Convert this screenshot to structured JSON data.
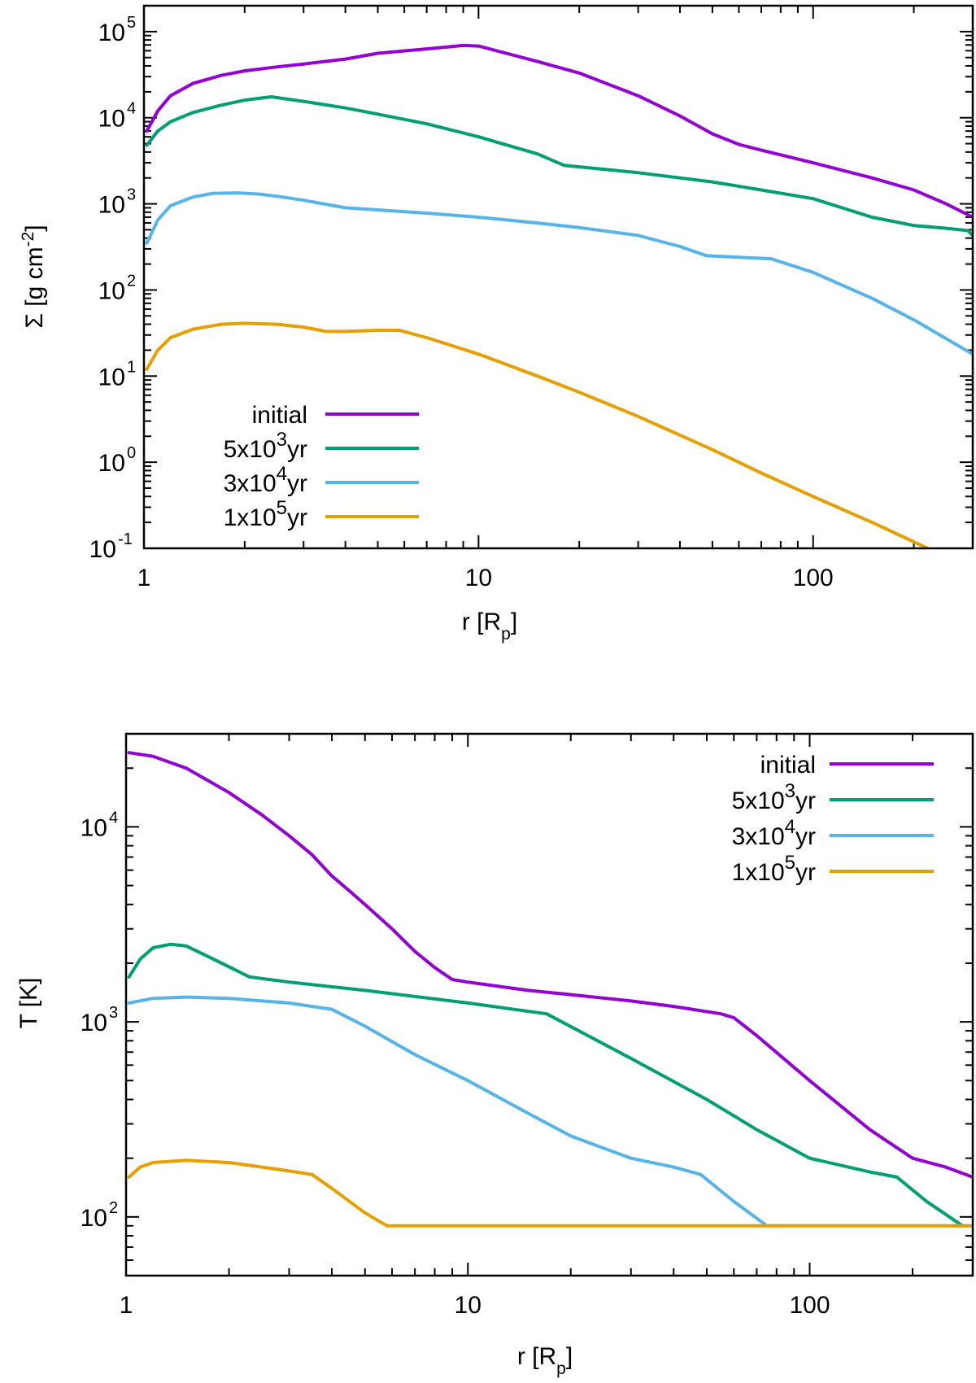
{
  "colors": {
    "initial": "#9400d3",
    "5e3": "#009e73",
    "3e4": "#56b4e9",
    "1e5": "#e69f00"
  },
  "chart_data": [
    {
      "type": "line",
      "x_scale": "log",
      "y_scale": "log",
      "xlabel": "r [R_p]",
      "ylabel": "Σ [g cm^-2]",
      "xlim": [
        1,
        300
      ],
      "ylim": [
        0.1,
        200000
      ],
      "grid": false,
      "legend_position": "bottom-left",
      "x_ticks": [
        {
          "value": 1,
          "label": "1"
        },
        {
          "value": 10,
          "label": "10"
        },
        {
          "value": 100,
          "label": "100"
        }
      ],
      "y_ticks": [
        {
          "value": 0.1,
          "base": "10",
          "exp": "-1"
        },
        {
          "value": 1,
          "base": "10",
          "exp": "0"
        },
        {
          "value": 10,
          "base": "10",
          "exp": "1"
        },
        {
          "value": 100,
          "base": "10",
          "exp": "2"
        },
        {
          "value": 1000,
          "base": "10",
          "exp": "3"
        },
        {
          "value": 10000,
          "base": "10",
          "exp": "4"
        },
        {
          "value": 100000,
          "base": "10",
          "exp": "5"
        }
      ],
      "series": [
        {
          "name": "initial",
          "name_parts": [
            "initial",
            "",
            ""
          ],
          "color_key": "initial",
          "x": [
            1.02,
            1.1,
            1.2,
            1.4,
            1.7,
            2.0,
            2.5,
            3.0,
            4.0,
            5.0,
            7.0,
            9.0,
            10.0,
            15.0,
            20.0,
            30.0,
            40.0,
            50.0,
            60.0,
            70.0,
            100.0,
            150.0,
            200.0,
            250.0,
            300.0
          ],
          "y": [
            7000,
            12000,
            18000,
            25000,
            31000,
            35000,
            39000,
            42000,
            48000,
            56000,
            63000,
            69000,
            68000,
            45000,
            33000,
            18000,
            10500,
            6500,
            4900,
            4200,
            3000,
            2000,
            1450,
            1000,
            700
          ]
        },
        {
          "name": "5x10^3yr",
          "name_parts": [
            "5x10",
            "3",
            "yr"
          ],
          "color_key": "5e3",
          "x": [
            1.02,
            1.1,
            1.2,
            1.4,
            1.7,
            2.0,
            2.4,
            3.0,
            4.0,
            5.0,
            7.0,
            10.0,
            15.0,
            18.0,
            30.0,
            50.0,
            70.0,
            100.0,
            150.0,
            200.0,
            250.0,
            290.0,
            300.0
          ],
          "y": [
            4800,
            7000,
            9000,
            11500,
            14000,
            16000,
            17500,
            15500,
            13000,
            11000,
            8500,
            6000,
            3800,
            2800,
            2300,
            1800,
            1450,
            1150,
            700,
            560,
            520,
            490,
            430
          ]
        },
        {
          "name": "3x10^4yr",
          "name_parts": [
            "3x10",
            "4",
            "yr"
          ],
          "color_key": "3e4",
          "x": [
            1.02,
            1.1,
            1.2,
            1.4,
            1.6,
            1.9,
            2.2,
            2.6,
            3.0,
            4.0,
            5.0,
            7.0,
            10.0,
            15.0,
            20.0,
            30.0,
            40.0,
            48.0,
            60.0,
            75.0,
            100.0,
            150.0,
            200.0,
            300.0
          ],
          "y": [
            350,
            650,
            950,
            1200,
            1320,
            1340,
            1300,
            1200,
            1100,
            900,
            850,
            780,
            700,
            600,
            530,
            430,
            320,
            250,
            240,
            230,
            160,
            80,
            45,
            18
          ]
        },
        {
          "name": "1x10^5yr",
          "name_parts": [
            "1x10",
            "5",
            "yr"
          ],
          "color_key": "1e5",
          "x": [
            1.02,
            1.1,
            1.2,
            1.4,
            1.7,
            2.0,
            2.5,
            3.0,
            3.5,
            4.0,
            5.0,
            5.8,
            7.0,
            10.0,
            15.0,
            20.0,
            30.0,
            50.0,
            70.0,
            100.0,
            150.0,
            220.0
          ],
          "y": [
            12,
            20,
            28,
            35,
            40,
            41,
            40,
            37,
            33,
            33,
            34,
            34,
            28,
            18,
            10,
            6.5,
            3.4,
            1.4,
            0.75,
            0.4,
            0.2,
            0.1
          ]
        }
      ]
    },
    {
      "type": "line",
      "x_scale": "log",
      "y_scale": "log",
      "xlabel": "r [R_p]",
      "ylabel": "T [K]",
      "xlim": [
        1,
        300
      ],
      "ylim": [
        50,
        30000
      ],
      "grid": false,
      "legend_position": "top-right",
      "x_ticks": [
        {
          "value": 1,
          "label": "1"
        },
        {
          "value": 10,
          "label": "10"
        },
        {
          "value": 100,
          "label": "100"
        }
      ],
      "y_ticks": [
        {
          "value": 100,
          "base": "10",
          "exp": "2"
        },
        {
          "value": 1000,
          "base": "10",
          "exp": "3"
        },
        {
          "value": 10000,
          "base": "10",
          "exp": "4"
        }
      ],
      "series": [
        {
          "name": "initial",
          "name_parts": [
            "initial",
            "",
            ""
          ],
          "color_key": "initial",
          "x": [
            1.02,
            1.2,
            1.5,
            2.0,
            2.5,
            3.0,
            3.5,
            4.0,
            4.5,
            5.0,
            6.0,
            7.0,
            8.0,
            9.0,
            10.0,
            15.0,
            20.0,
            30.0,
            40.0,
            55.0,
            60.0,
            70.0,
            100.0,
            150.0,
            200.0,
            250.0,
            300.0
          ],
          "y": [
            24000,
            23000,
            20000,
            15000,
            11500,
            9000,
            7200,
            5600,
            4700,
            4000,
            3000,
            2300,
            1900,
            1650,
            1600,
            1450,
            1380,
            1280,
            1200,
            1100,
            1050,
            850,
            500,
            280,
            200,
            180,
            160
          ]
        },
        {
          "name": "5x10^3yr",
          "name_parts": [
            "5x10",
            "3",
            "yr"
          ],
          "color_key": "5e3",
          "x": [
            1.02,
            1.1,
            1.2,
            1.35,
            1.5,
            1.8,
            2.3,
            3.0,
            5.0,
            10.0,
            17.0,
            30.0,
            50.0,
            70.0,
            100.0,
            150.0,
            180.0,
            220.0,
            280.0
          ],
          "y": [
            1700,
            2100,
            2400,
            2500,
            2450,
            2100,
            1700,
            1600,
            1450,
            1250,
            1100,
            650,
            400,
            280,
            200,
            170,
            160,
            120,
            90
          ]
        },
        {
          "name": "3x10^4yr",
          "name_parts": [
            "3x10",
            "4",
            "yr"
          ],
          "color_key": "3e4",
          "x": [
            1.02,
            1.2,
            1.5,
            2.0,
            3.0,
            3.5,
            4.0,
            5.0,
            7.0,
            10.0,
            15.0,
            20.0,
            30.0,
            40.0,
            48.0,
            60.0,
            75.0,
            300.0
          ],
          "y": [
            1250,
            1320,
            1340,
            1320,
            1250,
            1200,
            1160,
            950,
            680,
            500,
            340,
            260,
            200,
            180,
            165,
            120,
            90,
            90
          ]
        },
        {
          "name": "1x10^5yr",
          "name_parts": [
            "1x10",
            "5",
            "yr"
          ],
          "color_key": "1e5",
          "x": [
            1.02,
            1.1,
            1.2,
            1.5,
            2.0,
            2.5,
            3.0,
            3.5,
            4.0,
            5.0,
            5.8,
            10.0,
            100.0,
            300.0
          ],
          "y": [
            160,
            180,
            190,
            195,
            190,
            180,
            172,
            165,
            140,
            105,
            90,
            90,
            90,
            90
          ]
        }
      ]
    }
  ]
}
